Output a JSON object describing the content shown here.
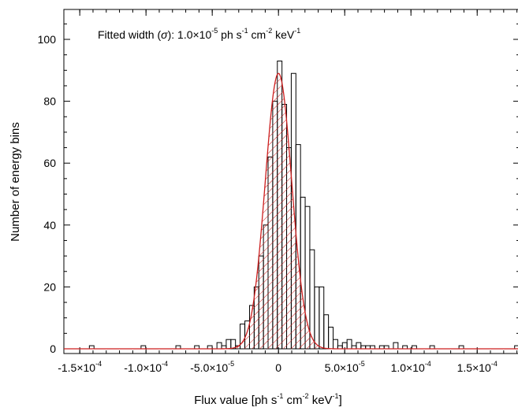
{
  "chart_data": {
    "type": "bar",
    "annotation": {
      "prefix": "Fitted width (",
      "sigma": "σ",
      "suffix": "): 1.0×10",
      "exp": "-5",
      "unit_ph": " ph s",
      "exp_s": "-1",
      "unit_cm": " cm",
      "exp_cm": "-2",
      "unit_kev": " keV",
      "exp_kev": "-1"
    },
    "xlabel": {
      "main": "Flux value [ph s",
      "exp_s": "-1",
      "cm": " cm",
      "exp_cm": "-2",
      "kev": " keV",
      "exp_kev": "-1",
      "end": "]"
    },
    "ylabel": "Number of energy bins",
    "xlim": [
      -0.000162,
      0.000182
    ],
    "ylim": [
      0,
      110
    ],
    "y_ticks": [
      {
        "value": 0,
        "label": "0"
      },
      {
        "value": 20,
        "label": "20"
      },
      {
        "value": 40,
        "label": "40"
      },
      {
        "value": 60,
        "label": "60"
      },
      {
        "value": 80,
        "label": "80"
      },
      {
        "value": 100,
        "label": "100"
      }
    ],
    "x_ticks": [
      {
        "value": -0.00015,
        "mant": "-1.5×10",
        "exp": "-4"
      },
      {
        "value": -0.0001,
        "mant": "-1.0×10",
        "exp": "-4"
      },
      {
        "value": -5e-05,
        "mant": "-5.0×10",
        "exp": "-5"
      },
      {
        "value": 0,
        "mant": "0",
        "exp": ""
      },
      {
        "value": 5e-05,
        "mant": "5.0×10",
        "exp": "-5"
      },
      {
        "value": 0.0001,
        "mant": "1.0×10",
        "exp": "-4"
      },
      {
        "value": 0.00015,
        "mant": "1.5×10",
        "exp": "-4"
      }
    ],
    "bin_width": 3.5e-06,
    "histogram": [
      {
        "x": -0.000141,
        "count": 1
      },
      {
        "x": -0.000102,
        "count": 1
      },
      {
        "x": -7.57e-05,
        "count": 1
      },
      {
        "x": -6.16e-05,
        "count": 1
      },
      {
        "x": -5.18e-05,
        "count": 1
      },
      {
        "x": -4.47e-05,
        "count": 2
      },
      {
        "x": -4.12e-05,
        "count": 1
      },
      {
        "x": -3.77e-05,
        "count": 3
      },
      {
        "x": -3.42e-05,
        "count": 3
      },
      {
        "x": -3.07e-05,
        "count": 1
      },
      {
        "x": -2.72e-05,
        "count": 8
      },
      {
        "x": -2.36e-05,
        "count": 9
      },
      {
        "x": -2.01e-05,
        "count": 14
      },
      {
        "x": -1.66e-05,
        "count": 20
      },
      {
        "x": -1.31e-05,
        "count": 30
      },
      {
        "x": -9.6e-06,
        "count": 40
      },
      {
        "x": -6.1e-06,
        "count": 62
      },
      {
        "x": -2.6e-06,
        "count": 80
      },
      {
        "x": 9e-07,
        "count": 93
      },
      {
        "x": 4.4e-06,
        "count": 79
      },
      {
        "x": 7.9e-06,
        "count": 65
      },
      {
        "x": 1.14e-05,
        "count": 89
      },
      {
        "x": 1.49e-05,
        "count": 66
      },
      {
        "x": 1.84e-05,
        "count": 49
      },
      {
        "x": 2.19e-05,
        "count": 46
      },
      {
        "x": 2.54e-05,
        "count": 32
      },
      {
        "x": 2.9e-05,
        "count": 20
      },
      {
        "x": 3.25e-05,
        "count": 20
      },
      {
        "x": 3.6e-05,
        "count": 11
      },
      {
        "x": 3.95e-05,
        "count": 7
      },
      {
        "x": 4.3e-05,
        "count": 3
      },
      {
        "x": 4.65e-05,
        "count": 1
      },
      {
        "x": 5e-05,
        "count": 2
      },
      {
        "x": 5.35e-05,
        "count": 3
      },
      {
        "x": 5.7e-05,
        "count": 1
      },
      {
        "x": 6.05e-05,
        "count": 2
      },
      {
        "x": 6.4e-05,
        "count": 1
      },
      {
        "x": 6.75e-05,
        "count": 1
      },
      {
        "x": 7.1e-05,
        "count": 1
      },
      {
        "x": 7.8e-05,
        "count": 1
      },
      {
        "x": 8.15e-05,
        "count": 1
      },
      {
        "x": 8.85e-05,
        "count": 2
      },
      {
        "x": 9.55e-05,
        "count": 1
      },
      {
        "x": 0.0001025,
        "count": 1
      },
      {
        "x": 0.000116,
        "count": 1
      },
      {
        "x": 0.000138,
        "count": 1
      },
      {
        "x": 0.00018,
        "count": 1
      }
    ],
    "gaussian_fit": {
      "amplitude": 89,
      "mean": 0,
      "sigma": 1e-05
    },
    "colors": {
      "histogram": "#000000",
      "fit": "#cc1f1f",
      "hatch": "#cc1f1f"
    }
  }
}
